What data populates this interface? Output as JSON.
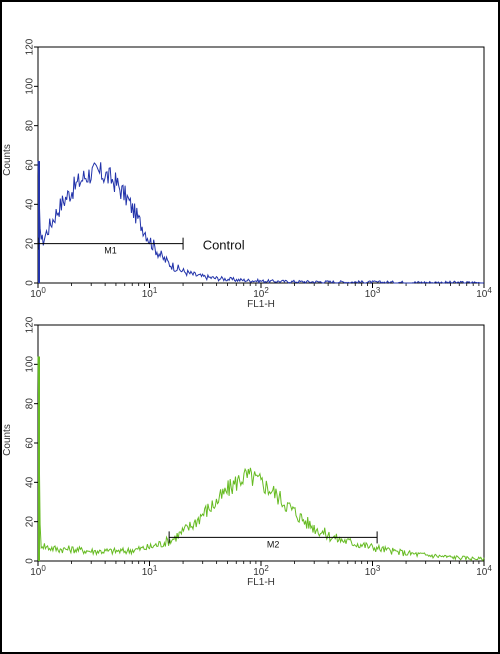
{
  "chart_data": [
    {
      "type": "line",
      "ylabel": "Counts",
      "xlabel": "FL1-H",
      "xscale": "log",
      "xlim": [
        1,
        10000
      ],
      "ylim": [
        0,
        120
      ],
      "y_ticks": [
        "0",
        "20",
        "40",
        "60",
        "80",
        "100",
        "120"
      ],
      "x_ticks": [
        {
          "base": "10",
          "exp": "0"
        },
        {
          "base": "10",
          "exp": "1"
        },
        {
          "base": "10",
          "exp": "2"
        },
        {
          "base": "10",
          "exp": "3"
        },
        {
          "base": "10",
          "exp": "4"
        }
      ],
      "series": [
        {
          "color": "#2233aa",
          "points": [
            [
              1.0,
              62
            ],
            [
              1.05,
              24
            ],
            [
              1.1,
              21
            ],
            [
              1.2,
              26
            ],
            [
              1.35,
              32
            ],
            [
              1.5,
              37
            ],
            [
              1.7,
              42
            ],
            [
              2.0,
              47
            ],
            [
              2.3,
              51
            ],
            [
              2.6,
              54
            ],
            [
              3.0,
              56
            ],
            [
              3.5,
              56
            ],
            [
              4.0,
              55
            ],
            [
              4.5,
              53
            ],
            [
              5.0,
              51
            ],
            [
              5.6,
              47
            ],
            [
              6.3,
              43
            ],
            [
              7.0,
              38
            ],
            [
              8.0,
              32
            ],
            [
              9.0,
              27
            ],
            [
              10,
              22
            ],
            [
              11.5,
              17
            ],
            [
              13,
              13
            ],
            [
              15,
              10
            ],
            [
              17,
              8
            ],
            [
              20,
              6
            ],
            [
              24,
              4.5
            ],
            [
              30,
              3.2
            ],
            [
              40,
              2.4
            ],
            [
              60,
              1.6
            ],
            [
              100,
              1.0
            ],
            [
              200,
              0.7
            ],
            [
              500,
              0.5
            ],
            [
              1000,
              0.4
            ],
            [
              2000,
              0.3
            ],
            [
              5000,
              0.2
            ],
            [
              10000,
              0.2
            ]
          ]
        }
      ],
      "gate": {
        "label": "M1",
        "x_start": 1,
        "x_end": 20,
        "y": 20
      },
      "annotation": {
        "text": "Control",
        "x": 30,
        "y": 20
      }
    },
    {
      "type": "line",
      "ylabel": "Counts",
      "xlabel": "FL1-H",
      "xscale": "log",
      "xlim": [
        1,
        10000
      ],
      "ylim": [
        0,
        120
      ],
      "y_ticks": [
        "0",
        "20",
        "40",
        "60",
        "80",
        "100",
        "120"
      ],
      "x_ticks": [
        {
          "base": "10",
          "exp": "0"
        },
        {
          "base": "10",
          "exp": "1"
        },
        {
          "base": "10",
          "exp": "2"
        },
        {
          "base": "10",
          "exp": "3"
        },
        {
          "base": "10",
          "exp": "4"
        }
      ],
      "series": [
        {
          "color": "#66bb22",
          "points": [
            [
              1.0,
              104
            ],
            [
              1.05,
              9
            ],
            [
              1.2,
              7
            ],
            [
              1.5,
              6
            ],
            [
              2,
              6
            ],
            [
              3,
              5
            ],
            [
              4,
              5
            ],
            [
              5,
              5
            ],
            [
              6,
              5
            ],
            [
              8,
              6
            ],
            [
              10,
              7
            ],
            [
              13,
              9
            ],
            [
              16,
              11
            ],
            [
              20,
              15
            ],
            [
              25,
              19
            ],
            [
              30,
              24
            ],
            [
              40,
              30
            ],
            [
              50,
              36
            ],
            [
              60,
              40
            ],
            [
              70,
              43
            ],
            [
              80,
              43
            ],
            [
              100,
              40
            ],
            [
              130,
              35
            ],
            [
              160,
              30
            ],
            [
              200,
              25
            ],
            [
              250,
              20
            ],
            [
              300,
              17
            ],
            [
              400,
              13
            ],
            [
              500,
              11
            ],
            [
              700,
              9
            ],
            [
              1000,
              7
            ],
            [
              1500,
              5
            ],
            [
              2000,
              4
            ],
            [
              3000,
              3
            ],
            [
              5000,
              2
            ],
            [
              10000,
              1
            ]
          ]
        }
      ],
      "gate": {
        "label": "M2",
        "x_start": 15,
        "x_end": 1100,
        "y": 12
      }
    }
  ]
}
